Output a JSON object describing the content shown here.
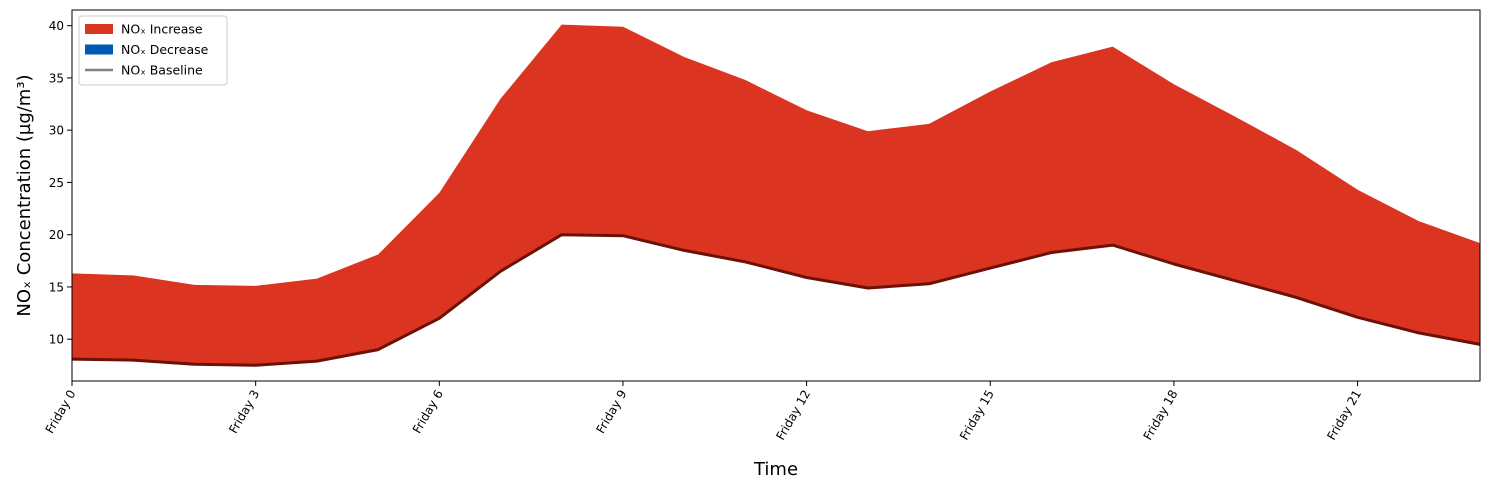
{
  "chart_data": {
    "type": "area",
    "title": "",
    "xlabel": "Time",
    "ylabel": "NOₓ Concentration (µg/m³)",
    "x_tick_labels": [
      "Friday 0",
      "Friday 3",
      "Friday 6",
      "Friday 9",
      "Friday 12",
      "Friday 15",
      "Friday 18",
      "Friday 21"
    ],
    "x_tick_positions": [
      0,
      3,
      6,
      9,
      12,
      15,
      18,
      21
    ],
    "y_ticks": [
      10,
      15,
      20,
      25,
      30,
      35,
      40
    ],
    "xlim": [
      0,
      23
    ],
    "ylim": [
      6,
      41.5
    ],
    "x": [
      0,
      1,
      2,
      3,
      4,
      5,
      6,
      7,
      8,
      9,
      10,
      11,
      12,
      13,
      14,
      15,
      16,
      17,
      18,
      19,
      20,
      21,
      22,
      23
    ],
    "series": [
      {
        "name": "NOₓ Baseline",
        "values": [
          8.1,
          8.0,
          7.6,
          7.5,
          7.9,
          9.0,
          12.0,
          16.5,
          20.0,
          19.9,
          18.5,
          17.4,
          15.9,
          14.9,
          15.3,
          16.8,
          18.3,
          19.0,
          17.2,
          15.6,
          14.0,
          12.1,
          10.6,
          9.5
        ]
      },
      {
        "name": "NOₓ Increase",
        "values": [
          16.3,
          16.1,
          15.2,
          15.1,
          15.8,
          18.1,
          24.0,
          33.0,
          40.1,
          39.9,
          37.0,
          34.8,
          31.9,
          29.9,
          30.6,
          33.7,
          36.5,
          38.0,
          34.4,
          31.3,
          28.1,
          24.3,
          21.3,
          19.2
        ]
      }
    ],
    "legend": {
      "placement": "top-left",
      "entries": [
        {
          "label": "NOₓ Increase",
          "kind": "patch",
          "color": "#db3420"
        },
        {
          "label": "NOₓ Decrease",
          "kind": "patch",
          "color": "#005ab5"
        },
        {
          "label": "NOₓ Baseline",
          "kind": "line",
          "color": "#808080"
        }
      ]
    },
    "colors": {
      "increase_fill": "#db3420",
      "baseline_line": "#6b1208"
    },
    "grid": false
  }
}
